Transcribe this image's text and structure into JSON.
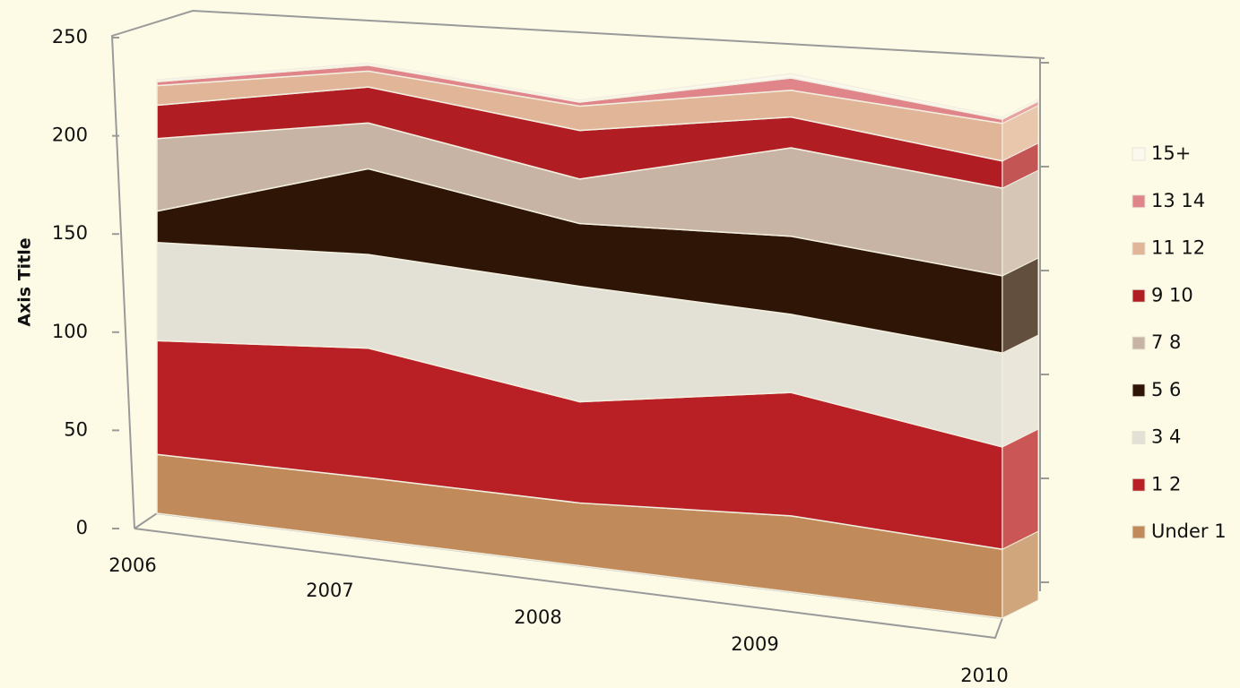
{
  "chart_data": {
    "type": "area3d",
    "y_axis_title": "Axis Title",
    "categories": [
      "2006",
      "2007",
      "2008",
      "2009",
      "2010"
    ],
    "ylim": [
      0,
      250
    ],
    "yticks": [
      0,
      50,
      100,
      150,
      200,
      250
    ],
    "series": [
      {
        "name": "Under 1",
        "color": "#c08a5a",
        "values": [
          30,
          31,
          31,
          37,
          33
        ]
      },
      {
        "name": "1 2",
        "color": "#b82025",
        "values": [
          58,
          65,
          50,
          60,
          49
        ]
      },
      {
        "name": "3 4",
        "color": "#e3e0d6",
        "values": [
          50,
          47,
          57,
          38,
          45
        ]
      },
      {
        "name": "5 6",
        "color": "#2e1505",
        "values": [
          16,
          43,
          31,
          38,
          37
        ]
      },
      {
        "name": "7 8",
        "color": "#c7b4a4",
        "values": [
          37,
          23,
          22,
          43,
          42
        ]
      },
      {
        "name": "9 10",
        "color": "#b01e24",
        "values": [
          17,
          18,
          24,
          15,
          13
        ]
      },
      {
        "name": "11 12",
        "color": "#e0b598",
        "values": [
          10,
          8,
          12,
          13,
          18
        ]
      },
      {
        "name": "13 14",
        "color": "#e0868a",
        "values": [
          2,
          3,
          2,
          6,
          2
        ]
      },
      {
        "name": "15+",
        "color": "#fbf9ee",
        "values": [
          1,
          1,
          1,
          2,
          1
        ]
      }
    ]
  }
}
